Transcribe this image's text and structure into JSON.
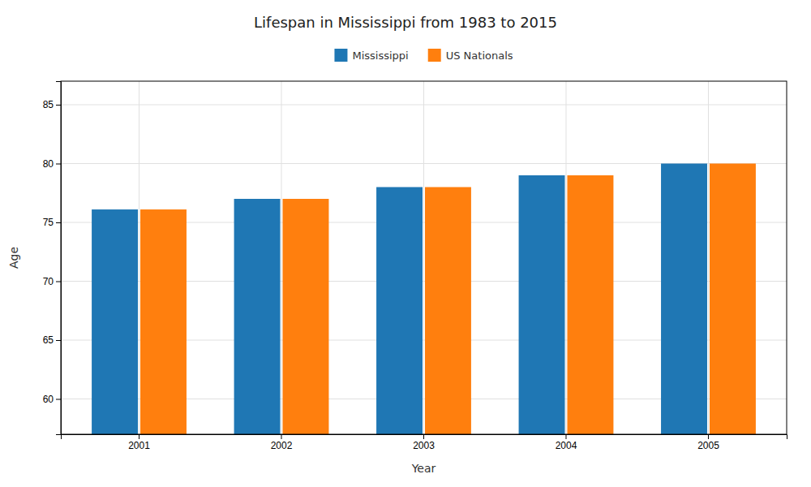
{
  "chart_data": {
    "type": "bar",
    "title": "Lifespan in Mississippi from 1983 to 2015",
    "xlabel": "Year",
    "ylabel": "Age",
    "categories": [
      "2001",
      "2002",
      "2003",
      "2004",
      "2005"
    ],
    "series": [
      {
        "name": "Mississippi",
        "values": [
          76.1,
          77.0,
          78.0,
          79.0,
          80.0
        ]
      },
      {
        "name": "US Nationals",
        "values": [
          76.1,
          77.0,
          78.0,
          79.0,
          80.0
        ]
      }
    ],
    "ylim": [
      57,
      87
    ],
    "yticks": [
      60,
      65,
      70,
      75,
      80,
      85
    ],
    "grid": true,
    "legend": "top"
  }
}
